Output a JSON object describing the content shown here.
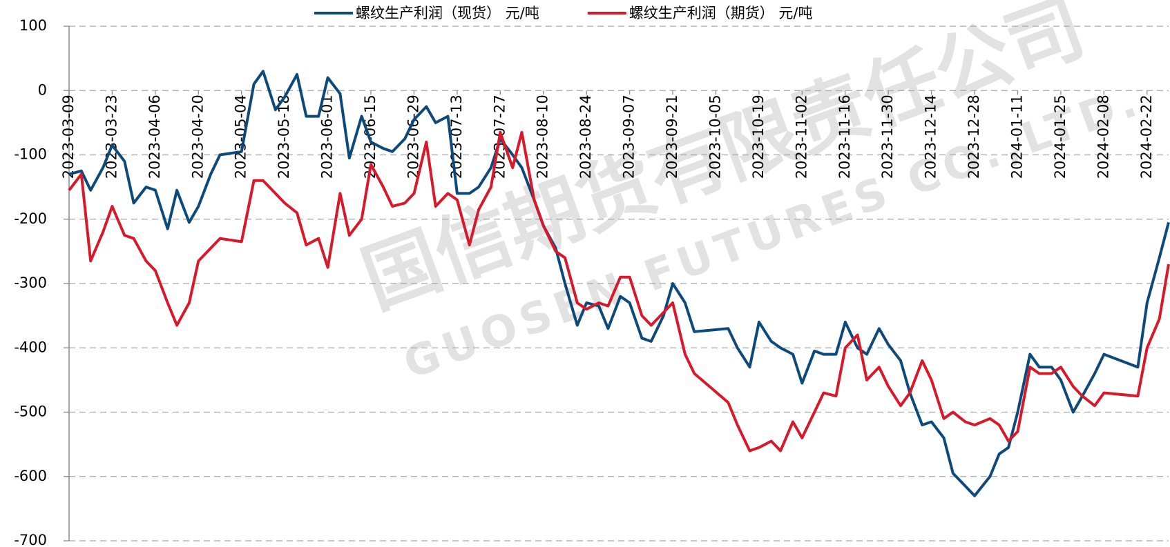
{
  "chart_data": {
    "type": "line",
    "watermark": [
      "国信期货有限责任公司",
      "GUOSEN FUTURES CO.,LTD."
    ],
    "x": [
      "2023-03-09",
      "2023-03-13",
      "2023-03-16",
      "2023-03-20",
      "2023-03-23",
      "2023-03-27",
      "2023-03-30",
      "2023-04-03",
      "2023-04-06",
      "2023-04-10",
      "2023-04-13",
      "2023-04-17",
      "2023-04-20",
      "2023-04-24",
      "2023-04-27",
      "2023-05-04",
      "2023-05-08",
      "2023-05-11",
      "2023-05-15",
      "2023-05-18",
      "2023-05-22",
      "2023-05-25",
      "2023-05-29",
      "2023-06-01",
      "2023-06-05",
      "2023-06-08",
      "2023-06-12",
      "2023-06-15",
      "2023-06-19",
      "2023-06-22",
      "2023-06-26",
      "2023-06-29",
      "2023-07-03",
      "2023-07-06",
      "2023-07-10",
      "2023-07-13",
      "2023-07-17",
      "2023-07-20",
      "2023-07-24",
      "2023-07-27",
      "2023-07-31",
      "2023-08-03",
      "2023-08-07",
      "2023-08-10",
      "2023-08-14",
      "2023-08-17",
      "2023-08-21",
      "2023-08-24",
      "2023-08-28",
      "2023-08-31",
      "2023-09-04",
      "2023-09-07",
      "2023-09-11",
      "2023-09-14",
      "2023-09-18",
      "2023-09-21",
      "2023-09-25",
      "2023-09-28",
      "2023-10-09",
      "2023-10-12",
      "2023-10-16",
      "2023-10-19",
      "2023-10-23",
      "2023-10-26",
      "2023-10-30",
      "2023-11-02",
      "2023-11-06",
      "2023-11-09",
      "2023-11-13",
      "2023-11-16",
      "2023-11-20",
      "2023-11-23",
      "2023-11-27",
      "2023-11-30",
      "2023-12-04",
      "2023-12-07",
      "2023-12-11",
      "2023-12-14",
      "2023-12-18",
      "2023-12-21",
      "2023-12-25",
      "2023-12-28",
      "2024-01-02",
      "2024-01-05",
      "2024-01-08",
      "2024-01-11",
      "2024-01-15",
      "2024-01-18",
      "2024-01-22",
      "2024-01-25",
      "2024-01-29",
      "2024-02-01",
      "2024-02-05",
      "2024-02-08",
      "2024-02-19",
      "2024-02-22",
      "2024-02-26",
      "2024-02-29"
    ],
    "series": [
      {
        "name": "螺纹生产利润（现货） 元/吨",
        "color": "#0d4a7c",
        "values": [
          -130,
          -125,
          -155,
          -120,
          -85,
          -110,
          -175,
          -150,
          -155,
          -215,
          -155,
          -205,
          -180,
          -130,
          -100,
          -95,
          10,
          30,
          -30,
          -10,
          25,
          -40,
          -40,
          20,
          -5,
          -105,
          -40,
          -80,
          -90,
          -95,
          -75,
          -45,
          -25,
          -50,
          -40,
          -160,
          -160,
          -150,
          -120,
          -75,
          -100,
          -120,
          -170,
          -210,
          -245,
          -300,
          -365,
          -330,
          -335,
          -370,
          -320,
          -330,
          -385,
          -390,
          -350,
          -300,
          -330,
          -375,
          -370,
          -400,
          -430,
          -360,
          -390,
          -400,
          -410,
          -455,
          -405,
          -410,
          -410,
          -360,
          -400,
          -410,
          -370,
          -395,
          -420,
          -470,
          -520,
          -515,
          -540,
          -595,
          -615,
          -630,
          -600,
          -565,
          -555,
          -500,
          -410,
          -430,
          -430,
          -450,
          -500,
          -475,
          -440,
          -410,
          -430,
          -330,
          -260,
          -205
        ]
      },
      {
        "name": "螺纹生产利润（期货） 元/吨",
        "color": "#d7192a",
        "values": [
          -155,
          -130,
          -265,
          -220,
          -180,
          -225,
          -230,
          -265,
          -280,
          -330,
          -365,
          -330,
          -265,
          -245,
          -230,
          -235,
          -140,
          -140,
          -160,
          -175,
          -190,
          -240,
          -230,
          -275,
          -160,
          -225,
          -200,
          -115,
          -150,
          -180,
          -175,
          -160,
          -80,
          -180,
          -160,
          -170,
          -240,
          -185,
          -150,
          -65,
          -120,
          -65,
          -170,
          -210,
          -250,
          -260,
          -330,
          -340,
          -330,
          -335,
          -290,
          -290,
          -350,
          -365,
          -345,
          -330,
          -410,
          -440,
          -485,
          -520,
          -560,
          -555,
          -545,
          -560,
          -515,
          -540,
          -500,
          -470,
          -475,
          -400,
          -380,
          -450,
          -430,
          -460,
          -490,
          -470,
          -420,
          -450,
          -510,
          -500,
          -515,
          -520,
          -510,
          -520,
          -545,
          -530,
          -430,
          -440,
          -440,
          -430,
          -460,
          -475,
          -490,
          -470,
          -475,
          -400,
          -355,
          -270
        ]
      }
    ],
    "xlim": [
      "2023-03-09",
      "2024-02-29"
    ],
    "xticks": [
      "2023-03-09",
      "2023-03-23",
      "2023-04-06",
      "2023-04-20",
      "2023-05-04",
      "2023-05-18",
      "2023-06-01",
      "2023-06-15",
      "2023-06-29",
      "2023-07-13",
      "2023-07-27",
      "2023-08-10",
      "2023-08-24",
      "2023-09-07",
      "2023-09-21",
      "2023-10-05",
      "2023-10-19",
      "2023-11-02",
      "2023-11-16",
      "2023-11-30",
      "2023-12-14",
      "2023-12-28",
      "2024-01-11",
      "2024-01-25",
      "2024-02-08",
      "2024-02-22"
    ],
    "ylim": [
      -700,
      100
    ],
    "yticks": [
      100,
      0,
      -100,
      -200,
      -300,
      -400,
      -500,
      -600,
      -700
    ],
    "grid": true,
    "legend": "top"
  }
}
